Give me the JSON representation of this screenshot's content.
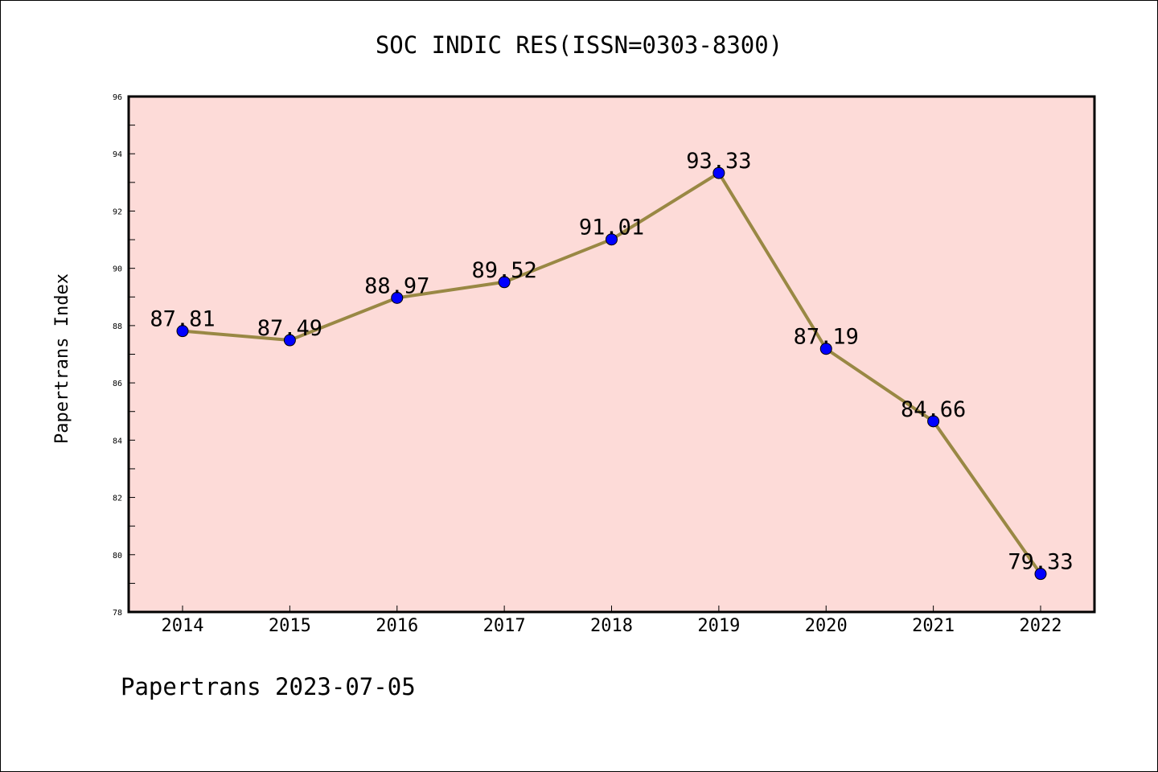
{
  "chart_data": {
    "type": "line",
    "title": "SOC INDIC RES(ISSN=0303-8300)",
    "xlabel": "",
    "ylabel": "Papertrans Index",
    "categories": [
      "2014",
      "2015",
      "2016",
      "2017",
      "2018",
      "2019",
      "2020",
      "2021",
      "2022"
    ],
    "series": [
      {
        "name": "Papertrans Index",
        "values": [
          87.81,
          87.49,
          88.97,
          89.52,
          91.01,
          93.33,
          87.19,
          84.66,
          79.33
        ]
      }
    ],
    "data_labels": [
      "87.81",
      "87.49",
      "88.97",
      "89.52",
      "91.01",
      "93.33",
      "87.19",
      "84.66",
      "79.33"
    ],
    "ylim": [
      78,
      96
    ],
    "yticks": [
      78,
      80,
      82,
      84,
      86,
      88,
      90,
      92,
      94,
      96
    ],
    "ytick_labels": [
      "78",
      "80",
      "82",
      "84",
      "86",
      "88",
      "90",
      "92",
      "94",
      "96"
    ],
    "grid": false,
    "footer": "Papertrans 2023-07-05"
  },
  "colors": {
    "plot_background": "#fddbd8",
    "line": "#998844",
    "marker": "#0000ff",
    "axis": "#000000"
  }
}
